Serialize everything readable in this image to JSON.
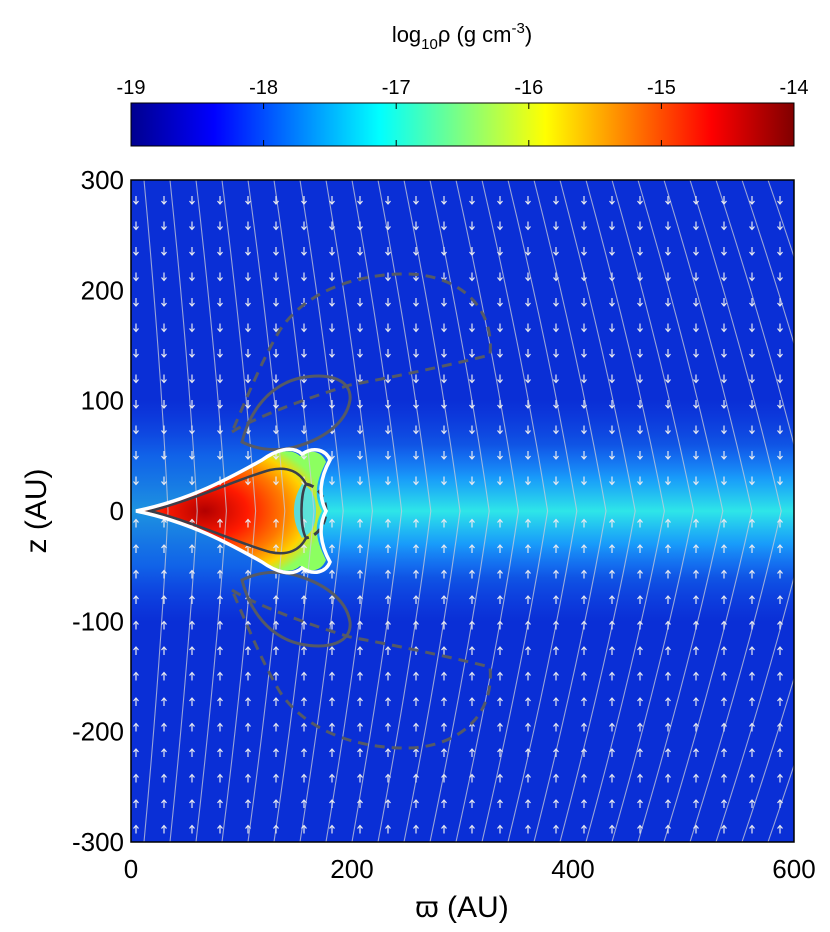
{
  "chart_data": {
    "type": "heatmap",
    "title": "",
    "xlabel": "ϖ (AU)",
    "ylabel": "z (AU)",
    "xlim": [
      0,
      600
    ],
    "ylim": [
      -300,
      300
    ],
    "x_ticks": [
      0,
      200,
      400,
      600
    ],
    "y_ticks": [
      300,
      200,
      100,
      0,
      -100,
      -200,
      -300
    ],
    "colorbar": {
      "quantity": "ρ",
      "title_main": "log",
      "title_sub": "10",
      "title_rest": "ρ (g cm",
      "title_sup": "-3",
      "title_close": ")",
      "range": [
        -19,
        -14
      ],
      "ticks": [
        -19,
        -18,
        -17,
        -16,
        -15,
        -14
      ],
      "colormap": "jet",
      "placement": "top"
    },
    "density_model": {
      "background_log_rho": -18.6,
      "pseudo_disk": {
        "core_log_rho": -16.9,
        "half_thickness_au": 60,
        "extends_to_au": 600
      },
      "inner_disk": {
        "outer_radius_au": 170,
        "peak_log_rho": -14.3
      }
    },
    "overlays": {
      "field_lines": "light gray curved lines bending toward the mid-plane",
      "velocity_arrows": "white arrows pointing toward the mid-plane (infall)",
      "contours": [
        {
          "style": "white solid",
          "description": "outline of the dense inner disk"
        },
        {
          "style": "dark gray solid",
          "description": "inner lobes above and below disk"
        },
        {
          "style": "dark gray dashed",
          "description": "outer lobes extending to z≈±215 AU"
        }
      ]
    },
    "grid": false,
    "legend": "none"
  },
  "colors": {
    "background_field": "#0a2fd6",
    "field_line": "#c8ccd8",
    "arrow": "#e6e8f0",
    "contour_white": "#ffffff",
    "contour_dark": "#555a66"
  }
}
